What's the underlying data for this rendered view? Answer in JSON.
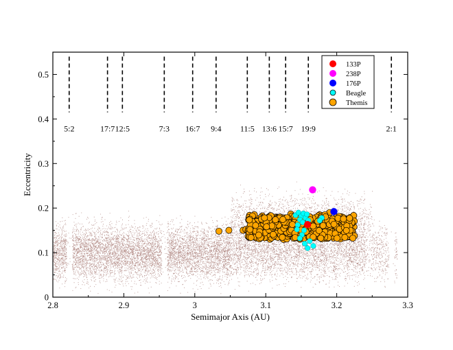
{
  "colors": {
    "background_asteroids": "#b58f8a",
    "themis": "#ffa500",
    "beagle": "#00ffff",
    "p133": "#ff0000",
    "p238": "#ff00ff",
    "p176": "#0000ff",
    "resonance_line": "#000000"
  },
  "chart_data": {
    "type": "scatter",
    "xlabel": "Semimajor Axis (AU)",
    "ylabel": "Eccentricity",
    "xlim": [
      2.8,
      3.3
    ],
    "ylim": [
      0,
      0.55
    ],
    "xticks": [
      {
        "value": 2.8,
        "label": "2.8"
      },
      {
        "value": 2.9,
        "label": "2.9"
      },
      {
        "value": 3.0,
        "label": "3"
      },
      {
        "value": 3.1,
        "label": "3.1"
      },
      {
        "value": 3.2,
        "label": "3.2"
      },
      {
        "value": 3.3,
        "label": "3.3"
      }
    ],
    "yticks": [
      {
        "value": 0,
        "label": "0"
      },
      {
        "value": 0.1,
        "label": "0.1"
      },
      {
        "value": 0.2,
        "label": "0.2"
      },
      {
        "value": 0.3,
        "label": "0.3"
      },
      {
        "value": 0.4,
        "label": "0.4"
      },
      {
        "value": 0.5,
        "label": "0.5"
      }
    ],
    "grid": false,
    "legend_position": "top-right",
    "resonances": [
      {
        "label": "5:2",
        "a": 2.823
      },
      {
        "label": "17:7",
        "a": 2.877
      },
      {
        "label": "12:5",
        "a": 2.898
      },
      {
        "label": "7:3",
        "a": 2.957
      },
      {
        "label": "16:7",
        "a": 2.997
      },
      {
        "label": "9:4",
        "a": 3.03
      },
      {
        "label": "11:5",
        "a": 3.074
      },
      {
        "label": "13:6",
        "a": 3.105
      },
      {
        "label": "15:7",
        "a": 3.128
      },
      {
        "label": "19:9",
        "a": 3.16
      },
      {
        "label": "2:1",
        "a": 3.277
      }
    ],
    "resonance_e_range": [
      0.415,
      0.54
    ],
    "series": [
      {
        "name": "Themis",
        "color": "#ffa500",
        "description_points": [
          {
            "a": 3.034,
            "e": 0.148
          },
          {
            "a": 3.048,
            "e": 0.15
          },
          {
            "a": 3.068,
            "e": 0.15
          },
          {
            "a": 3.072,
            "e": 0.152
          },
          {
            "a": 3.083,
            "e": 0.158
          },
          {
            "a": 3.086,
            "e": 0.168
          },
          {
            "a": 3.09,
            "e": 0.145
          },
          {
            "a": 3.092,
            "e": 0.175
          },
          {
            "a": 3.095,
            "e": 0.16
          },
          {
            "a": 3.097,
            "e": 0.135
          },
          {
            "a": 3.1,
            "e": 0.17
          },
          {
            "a": 3.102,
            "e": 0.15
          },
          {
            "a": 3.104,
            "e": 0.18
          },
          {
            "a": 3.106,
            "e": 0.13
          },
          {
            "a": 3.108,
            "e": 0.162
          },
          {
            "a": 3.11,
            "e": 0.145
          },
          {
            "a": 3.112,
            "e": 0.175
          },
          {
            "a": 3.114,
            "e": 0.155
          },
          {
            "a": 3.116,
            "e": 0.14
          },
          {
            "a": 3.118,
            "e": 0.168
          },
          {
            "a": 3.12,
            "e": 0.18
          },
          {
            "a": 3.122,
            "e": 0.15
          },
          {
            "a": 3.124,
            "e": 0.132
          },
          {
            "a": 3.126,
            "e": 0.17
          },
          {
            "a": 3.128,
            "e": 0.158
          },
          {
            "a": 3.13,
            "e": 0.145
          },
          {
            "a": 3.132,
            "e": 0.178
          },
          {
            "a": 3.134,
            "e": 0.16
          },
          {
            "a": 3.136,
            "e": 0.138
          },
          {
            "a": 3.138,
            "e": 0.168
          },
          {
            "a": 3.14,
            "e": 0.152
          },
          {
            "a": 3.142,
            "e": 0.182
          },
          {
            "a": 3.144,
            "e": 0.145
          },
          {
            "a": 3.146,
            "e": 0.165
          },
          {
            "a": 3.148,
            "e": 0.13
          },
          {
            "a": 3.15,
            "e": 0.175
          },
          {
            "a": 3.152,
            "e": 0.158
          },
          {
            "a": 3.154,
            "e": 0.142
          },
          {
            "a": 3.156,
            "e": 0.17
          },
          {
            "a": 3.158,
            "e": 0.15
          },
          {
            "a": 3.162,
            "e": 0.18
          },
          {
            "a": 3.164,
            "e": 0.138
          },
          {
            "a": 3.166,
            "e": 0.165
          },
          {
            "a": 3.168,
            "e": 0.152
          },
          {
            "a": 3.17,
            "e": 0.175
          },
          {
            "a": 3.172,
            "e": 0.145
          },
          {
            "a": 3.174,
            "e": 0.162
          },
          {
            "a": 3.176,
            "e": 0.185
          },
          {
            "a": 3.178,
            "e": 0.14
          },
          {
            "a": 3.18,
            "e": 0.17
          },
          {
            "a": 3.182,
            "e": 0.155
          },
          {
            "a": 3.184,
            "e": 0.178
          },
          {
            "a": 3.186,
            "e": 0.135
          },
          {
            "a": 3.188,
            "e": 0.165
          },
          {
            "a": 3.19,
            "e": 0.19
          },
          {
            "a": 3.192,
            "e": 0.148
          },
          {
            "a": 3.194,
            "e": 0.172
          },
          {
            "a": 3.196,
            "e": 0.158
          },
          {
            "a": 3.198,
            "e": 0.14
          },
          {
            "a": 3.2,
            "e": 0.18
          },
          {
            "a": 3.202,
            "e": 0.162
          },
          {
            "a": 3.204,
            "e": 0.148
          },
          {
            "a": 3.206,
            "e": 0.175
          },
          {
            "a": 3.208,
            "e": 0.155
          },
          {
            "a": 3.21,
            "e": 0.14
          },
          {
            "a": 3.212,
            "e": 0.168
          },
          {
            "a": 3.214,
            "e": 0.15
          },
          {
            "a": 3.216,
            "e": 0.142
          },
          {
            "a": 3.218,
            "e": 0.16
          },
          {
            "a": 3.222,
            "e": 0.145
          }
        ]
      },
      {
        "name": "Beagle",
        "color": "#00ffff",
        "points": [
          {
            "a": 3.142,
            "e": 0.184
          },
          {
            "a": 3.146,
            "e": 0.19
          },
          {
            "a": 3.15,
            "e": 0.182
          },
          {
            "a": 3.153,
            "e": 0.188
          },
          {
            "a": 3.148,
            "e": 0.174
          },
          {
            "a": 3.156,
            "e": 0.178
          },
          {
            "a": 3.152,
            "e": 0.168
          },
          {
            "a": 3.158,
            "e": 0.186
          },
          {
            "a": 3.145,
            "e": 0.162
          },
          {
            "a": 3.16,
            "e": 0.172
          },
          {
            "a": 3.151,
            "e": 0.14
          },
          {
            "a": 3.148,
            "e": 0.132
          },
          {
            "a": 3.155,
            "e": 0.12
          },
          {
            "a": 3.159,
            "e": 0.11
          },
          {
            "a": 3.162,
            "e": 0.126
          },
          {
            "a": 3.167,
            "e": 0.115
          },
          {
            "a": 3.154,
            "e": 0.15
          },
          {
            "a": 3.179,
            "e": 0.178
          },
          {
            "a": 3.176,
            "e": 0.172
          },
          {
            "a": 3.144,
            "e": 0.152
          }
        ]
      },
      {
        "name": "133P",
        "color": "#ff0000",
        "points": [
          {
            "a": 3.159,
            "e": 0.163
          }
        ]
      },
      {
        "name": "238P",
        "color": "#ff00ff",
        "points": [
          {
            "a": 3.166,
            "e": 0.241
          }
        ]
      },
      {
        "name": "176P",
        "color": "#0000ff",
        "points": [
          {
            "a": 3.196,
            "e": 0.192
          }
        ]
      }
    ]
  }
}
